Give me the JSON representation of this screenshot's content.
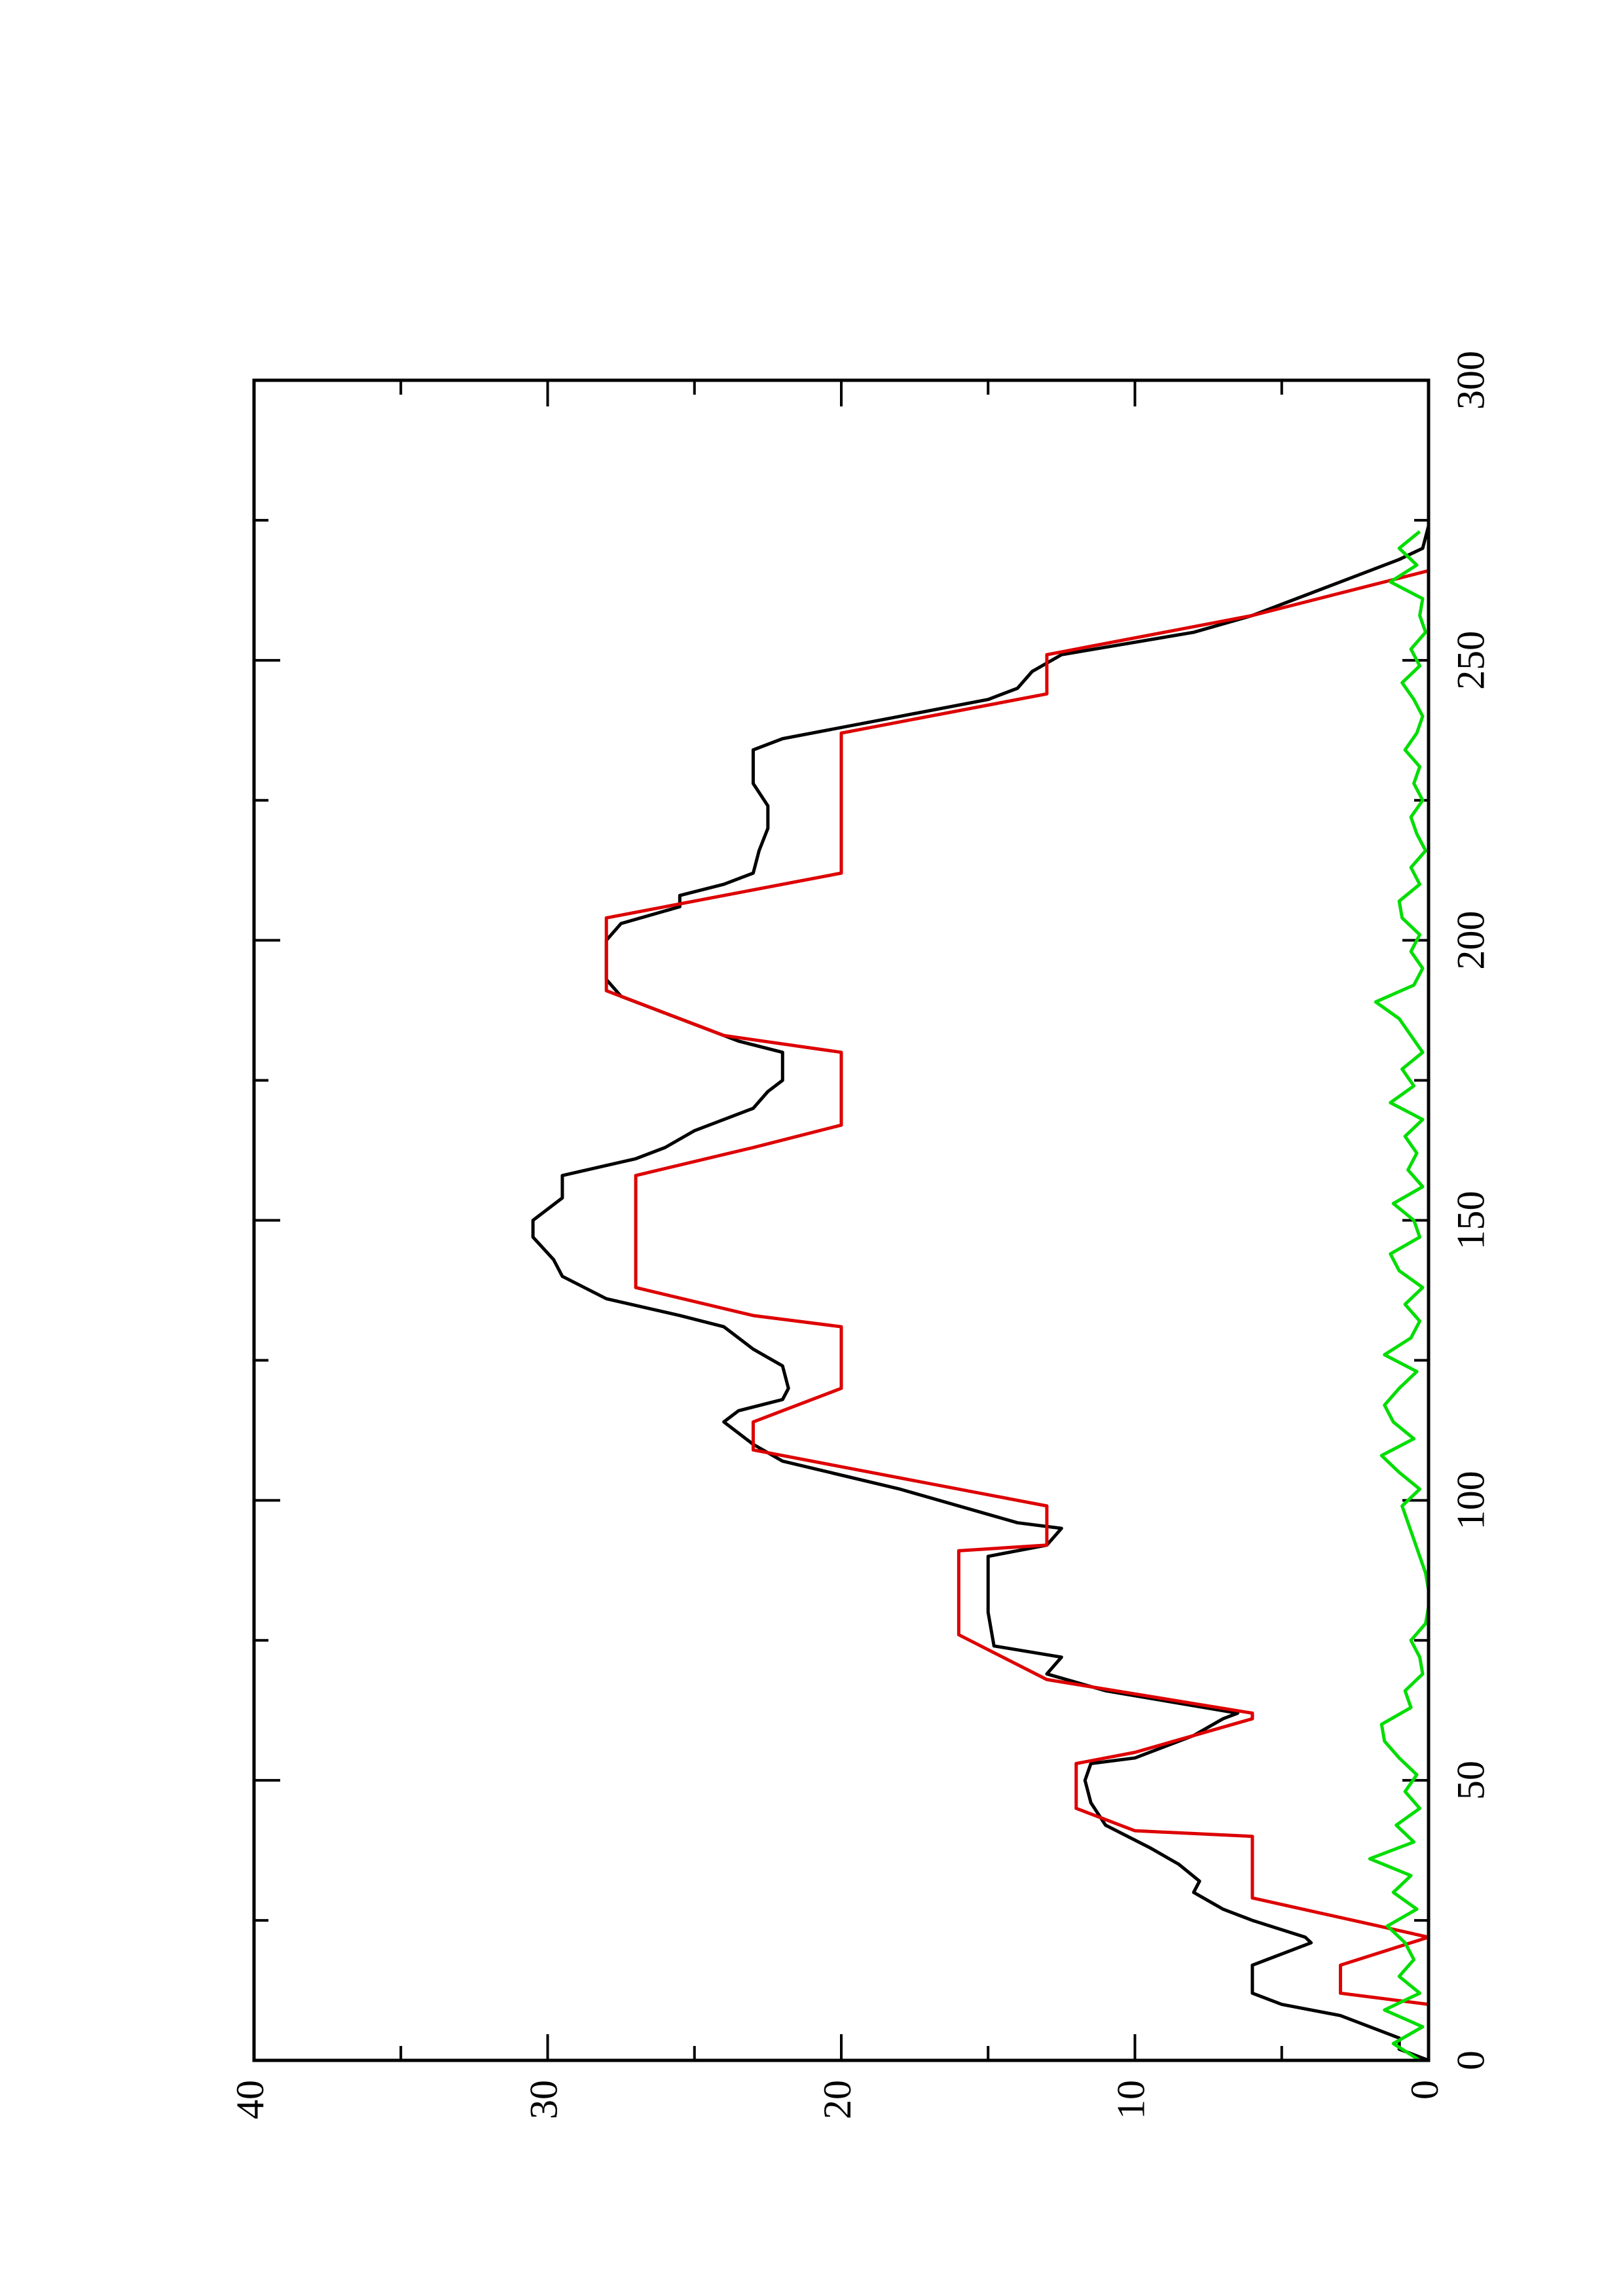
{
  "chart_data": {
    "type": "line",
    "xlim": [
      0,
      300
    ],
    "xticks": [
      0,
      50,
      100,
      150,
      200,
      250,
      300
    ],
    "xminorticks": [
      25,
      75,
      125,
      175,
      225,
      275
    ],
    "ylim": [
      0,
      40
    ],
    "yticks": [
      0,
      10,
      20,
      30,
      40
    ],
    "yminorticks": [
      5,
      15,
      25,
      35
    ],
    "rotated": true,
    "series": [
      {
        "color": "#000000",
        "x": [
          0,
          2,
          4,
          8,
          10,
          12,
          17,
          18,
          21,
          22,
          25,
          27,
          30,
          32,
          35,
          38,
          42,
          46,
          50,
          53,
          54,
          58,
          61,
          62,
          66,
          69,
          72,
          74,
          80,
          90,
          92,
          95,
          96,
          102,
          107,
          110,
          112,
          114,
          116,
          118,
          120,
          124,
          127,
          131,
          133,
          136,
          140,
          143,
          147,
          150,
          154,
          158,
          161,
          163,
          166,
          170,
          173,
          175,
          180,
          182,
          185,
          187,
          190,
          193,
          197,
          200,
          203,
          206,
          208,
          210,
          212,
          216,
          220,
          224,
          228,
          231,
          234,
          236,
          240,
          243,
          245,
          248,
          251,
          255,
          258,
          260,
          264,
          268,
          270,
          274
        ],
        "values": [
          0,
          1,
          1,
          3,
          5,
          6,
          6,
          5.5,
          4,
          4.2,
          6,
          7,
          8,
          7.8,
          8.5,
          9.5,
          11,
          11.5,
          11.7,
          11.5,
          10,
          8,
          7,
          6.5,
          11,
          13,
          12.5,
          14.8,
          15,
          15,
          13,
          12.5,
          14,
          18,
          22,
          23,
          23.5,
          24,
          23.5,
          22,
          21.8,
          22,
          23,
          24,
          25.5,
          28,
          29.5,
          29.8,
          30.5,
          30.5,
          29.5,
          29.5,
          27,
          26,
          25,
          23,
          22.5,
          22,
          22,
          23.5,
          25,
          26,
          27.5,
          28,
          28,
          28,
          27.5,
          25.5,
          25.5,
          24,
          23,
          22.8,
          22.5,
          22.5,
          23,
          23,
          23,
          22,
          18,
          15,
          14,
          13.5,
          12.5,
          8,
          6,
          5,
          3,
          1,
          0.2,
          0
        ]
      },
      {
        "color": "#dd0000",
        "x": [
          10,
          12,
          17,
          22,
          29,
          40,
          41,
          45,
          53,
          55,
          61,
          62,
          68,
          76,
          91,
          92,
          99,
          109,
          114,
          120,
          131,
          133,
          138,
          158,
          163,
          167,
          180,
          183,
          191,
          204,
          208,
          212,
          237,
          244,
          251,
          258,
          266
        ],
        "values": [
          0,
          3,
          3,
          0,
          6,
          6,
          10,
          12,
          12,
          10,
          6,
          6,
          13,
          16,
          16,
          13,
          13,
          23,
          23,
          20,
          20,
          23,
          27,
          27,
          23,
          20,
          20,
          24,
          28,
          28,
          24,
          20,
          20,
          13,
          13,
          6,
          0
        ]
      },
      {
        "color": "#00dd00",
        "x": [
          0,
          3,
          6,
          9,
          12,
          15,
          18,
          21,
          24,
          27,
          30,
          33,
          36,
          39,
          42,
          45,
          48,
          51,
          54,
          57,
          60,
          63,
          66,
          69,
          72,
          75,
          78,
          81,
          84,
          87,
          90,
          93,
          96,
          99,
          102,
          105,
          108,
          111,
          114,
          117,
          120,
          123,
          126,
          129,
          132,
          135,
          138,
          141,
          144,
          147,
          150,
          153,
          156,
          159,
          162,
          165,
          168,
          171,
          174,
          177,
          180,
          183,
          186,
          189,
          192,
          195,
          198,
          201,
          204,
          207,
          210,
          213,
          216,
          219,
          222,
          225,
          228,
          231,
          234,
          237,
          240,
          243,
          246,
          249,
          252,
          255,
          258,
          261,
          264,
          267,
          270,
          273
        ],
        "values": [
          0.3,
          1.2,
          0.2,
          1.5,
          0.3,
          1.0,
          0.5,
          0.8,
          1.4,
          0.4,
          1.2,
          0.6,
          2.0,
          0.5,
          1.1,
          0.3,
          0.8,
          0.4,
          1.0,
          1.5,
          1.6,
          0.6,
          0.8,
          0.2,
          0.3,
          0.6,
          0.1,
          0.0,
          0.0,
          0.1,
          0.3,
          0.5,
          0.7,
          0.9,
          0.3,
          1.0,
          1.6,
          0.5,
          1.2,
          1.5,
          1.0,
          0.4,
          1.5,
          0.6,
          0.3,
          0.8,
          0.2,
          1.0,
          1.3,
          0.3,
          0.5,
          1.2,
          0.2,
          0.7,
          0.4,
          0.8,
          0.2,
          1.3,
          0.5,
          0.9,
          0.2,
          0.6,
          1.0,
          1.8,
          0.5,
          0.2,
          0.6,
          0.3,
          0.9,
          1.0,
          0.3,
          0.6,
          0.1,
          0.4,
          0.6,
          0.2,
          0.5,
          0.3,
          0.8,
          0.4,
          0.2,
          0.5,
          0.9,
          0.3,
          0.6,
          0.1,
          0.3,
          0.2,
          1.3,
          0.4,
          1.0,
          0.3
        ]
      }
    ]
  }
}
